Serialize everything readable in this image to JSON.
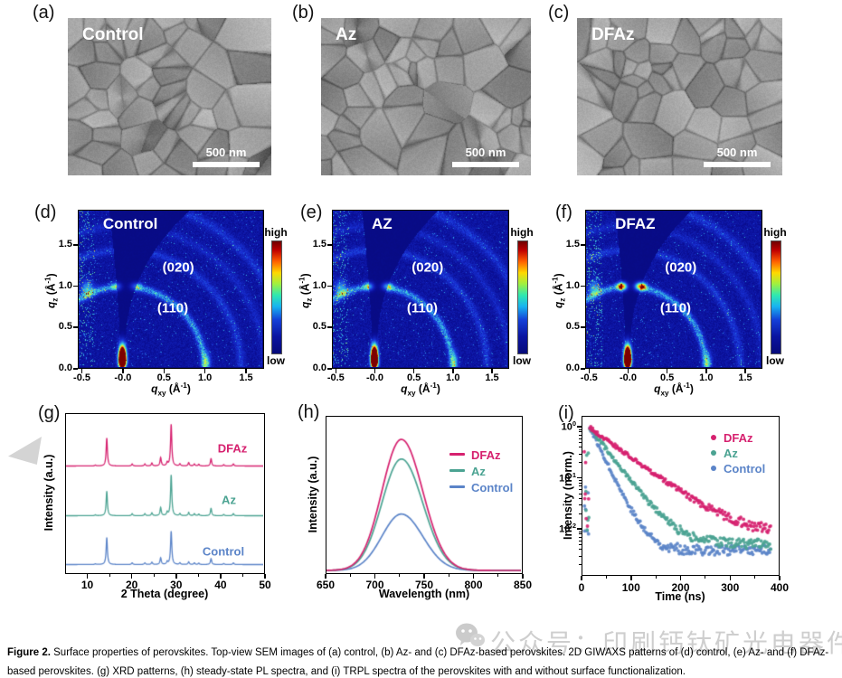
{
  "figure_caption": {
    "label": "Figure 2.",
    "text": " Surface properties of perovskites. Top-view SEM images of (a) control, (b) Az- and (c) DFAz-based perovskites. 2D GIWAXS patterns of (d) control, (e) Az- and (f) DFAz-based perovskites. (g) XRD patterns, (h) steady-state PL spectra, and (i) TRPL spectra of the perovskites with and without surface functionalization."
  },
  "watermark": {
    "text": "公众号：印刷钙钛矿光电器件",
    "icon": "wechat-icon",
    "color": "#c6c6c6"
  },
  "colors": {
    "dfaz": "#d6216f",
    "az": "#4ba392",
    "control": "#5b84c8",
    "giwaxs_bg": "#070b7e"
  },
  "sem_panels": [
    {
      "letter": "(a)",
      "title": "Control",
      "scale_bar": "500 nm"
    },
    {
      "letter": "(b)",
      "title": "Az",
      "scale_bar": "500 nm"
    },
    {
      "letter": "(c)",
      "title": "DFAz",
      "scale_bar": "500 nm"
    }
  ],
  "giwaxs": {
    "panels": [
      {
        "letter": "(d)",
        "title": "Control"
      },
      {
        "letter": "(e)",
        "title": "AZ"
      },
      {
        "letter": "(f)",
        "title": "DFAZ"
      }
    ],
    "annotations": [
      "(020)",
      "(110)"
    ],
    "colorbar": {
      "high": "high",
      "low": "low"
    },
    "yticks": [
      "0.0",
      "0.5",
      "1.0",
      "1.5"
    ],
    "ytick_values": [
      0,
      0.5,
      1.0,
      1.5
    ],
    "xticks": [
      "-0.5",
      "-0.0",
      "0.5",
      "1.0",
      "1.5"
    ],
    "xtick_values": [
      -0.5,
      0,
      0.5,
      1.0,
      1.5
    ],
    "ylabel": {
      "variable": "q",
      "sub": "z",
      "unit_open": " (Å",
      "exp": "-1",
      "unit_close": ")"
    },
    "xlabel": {
      "variable": "q",
      "sub": "xy",
      "unit_open": " (Å",
      "exp": "-1",
      "unit_close": ")"
    }
  },
  "panel_letters": {
    "xrd": "(g)",
    "pl": "(h)",
    "trpl": "(i)"
  },
  "chart_data": [
    {
      "id": "xrd",
      "type": "line",
      "xlabel": "2 Theta (degree)",
      "ylabel": "Intensity (a.u.)",
      "xlim": [
        5,
        50
      ],
      "xticks": [
        10,
        20,
        30,
        40,
        50
      ],
      "xticks_minor": [
        15,
        25,
        35,
        45
      ],
      "peaks_2theta": [
        11.7,
        20.1,
        23.0,
        24.6,
        26.6,
        28.1,
        29.0,
        31.0,
        33.0,
        34.3,
        35.3,
        38.1,
        41.0,
        43.2
      ],
      "peak_rel_heights": [
        0.02,
        0.05,
        0.05,
        0.07,
        0.2,
        0.08,
        1.0,
        0.05,
        0.08,
        0.05,
        0.04,
        0.18,
        0.03,
        0.05
      ],
      "peak14_2theta": 14.3,
      "series": [
        {
          "name": "DFAz",
          "color": "#d6216f",
          "amplitude": 1.0,
          "peak14_rel": 0.67
        },
        {
          "name": "Az",
          "color": "#4ba392",
          "amplitude": 0.98,
          "peak14_rel": 0.6
        },
        {
          "name": "Control",
          "color": "#5b84c8",
          "amplitude": 0.8,
          "peak14_rel": 0.81
        }
      ]
    },
    {
      "id": "pl",
      "type": "line",
      "xlabel": "Wavelength (nm)",
      "ylabel": "Intensity (a.u.)",
      "xlim": [
        650,
        850
      ],
      "xticks": [
        650,
        700,
        750,
        800,
        850
      ],
      "xticks_minor": [
        675,
        725,
        775,
        825
      ],
      "peak_center_nm": 727,
      "sigma_left_nm": 20,
      "sigma_right_nm": 22,
      "series": [
        {
          "name": "DFAz",
          "color": "#d6216f",
          "amplitude": 1.0
        },
        {
          "name": "Az",
          "color": "#4ba392",
          "amplitude": 0.85
        },
        {
          "name": "Control",
          "color": "#5b84c8",
          "amplitude": 0.43
        }
      ]
    },
    {
      "id": "trpl",
      "type": "scatter",
      "xlabel": "Time (ns)",
      "ylabel": "Intensity (norm.)",
      "xlim": [
        0,
        400
      ],
      "xticks": [
        0,
        100,
        200,
        300,
        400
      ],
      "xticks_minor": [
        50,
        150,
        250,
        350
      ],
      "yticks": [
        {
          "base": "10",
          "exp": "0",
          "value": 1
        },
        {
          "base": "10",
          "exp": "-1",
          "value": 0.1
        },
        {
          "base": "10",
          "exp": "-2",
          "value": 0.01
        }
      ],
      "series": [
        {
          "name": "DFAz",
          "color": "#d6216f",
          "tau_ns": 65,
          "noise_floor": 0.0075
        },
        {
          "name": "Az",
          "color": "#4ba392",
          "tau_ns": 36,
          "noise_floor": 0.0052
        },
        {
          "name": "Control",
          "color": "#5b84c8",
          "tau_ns": 23,
          "noise_floor": 0.004
        }
      ]
    },
    {
      "id": "giwaxs",
      "type": "heatmap",
      "xlim": [
        -0.55,
        1.72
      ],
      "ylim": [
        0,
        1.93
      ],
      "rings_q": [
        1.0,
        1.45,
        1.75,
        2.05
      ],
      "ring_assignments": {
        "(110)": 1.0,
        "(020)": 1.45
      },
      "beam_center_q": [
        0,
        0
      ]
    }
  ]
}
